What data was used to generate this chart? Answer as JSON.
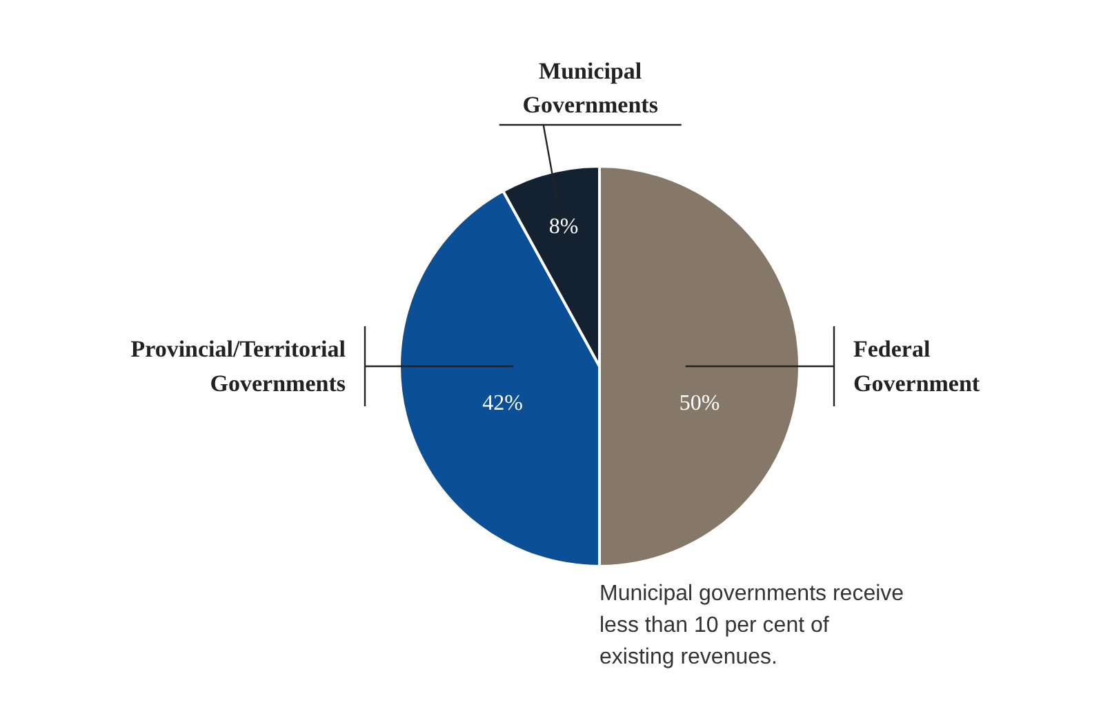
{
  "chart_data": {
    "type": "pie",
    "categories": [
      "Federal\nGovernment",
      "Provincial/Territorial\nGovernments",
      "Municipal\nGovernments"
    ],
    "values": [
      50,
      42,
      8
    ],
    "colors": [
      "#857868",
      "#0b4f96",
      "#142130"
    ],
    "value_labels": [
      "50%",
      "42%",
      "8%"
    ],
    "annotations": [
      "Municipal governments receive less than 10 per cent of existing revenues."
    ]
  }
}
